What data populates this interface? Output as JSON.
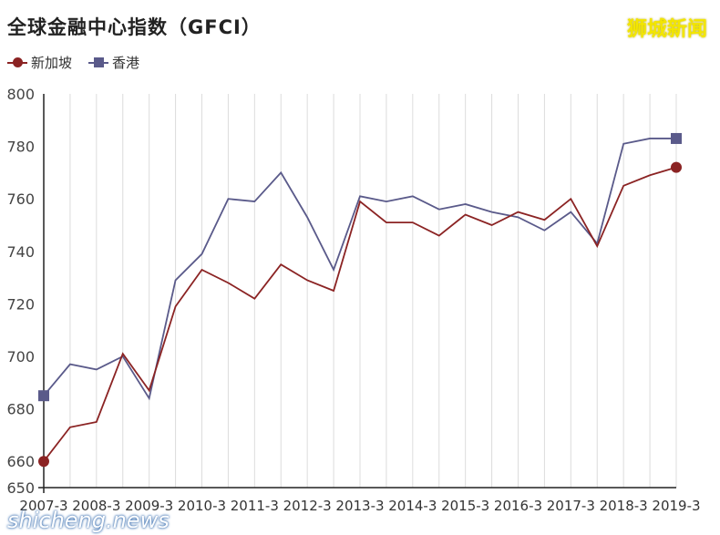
{
  "header": {
    "title": "全球金融中心指数（GFCI）",
    "brand": "狮城新闻"
  },
  "footer": {
    "watermark": "shicheng.news"
  },
  "colors": {
    "singapore": "#8b2323",
    "hongkong": "#5a5a8a",
    "grid": "#dcdcdc",
    "axis": "#222222"
  },
  "chart_data": {
    "type": "line",
    "title": "全球金融中心指数（GFCI）",
    "xlabel": "",
    "ylabel": "",
    "ylim": [
      650,
      800
    ],
    "yticks": [
      650,
      660,
      680,
      700,
      720,
      740,
      760,
      780,
      800
    ],
    "legend_position": "top-left",
    "grid": "vertical",
    "x": [
      "2007-3",
      "2007-9",
      "2008-3",
      "2008-9",
      "2009-3",
      "2009-9",
      "2010-3",
      "2010-9",
      "2011-3",
      "2011-9",
      "2012-3",
      "2012-9",
      "2013-3",
      "2013-9",
      "2014-3",
      "2014-9",
      "2015-3",
      "2015-9",
      "2016-3",
      "2016-9",
      "2017-3",
      "2017-9",
      "2018-3",
      "2018-9",
      "2019-3"
    ],
    "xtick_labels": [
      "2007-3",
      "2008-3",
      "2009-3",
      "2010-3",
      "2011-3",
      "2012-3",
      "2013-3",
      "2014-3",
      "2015-3",
      "2016-3",
      "2017-3",
      "2018-3",
      "2019-3"
    ],
    "series": [
      {
        "name": "新加坡",
        "marker": "circle",
        "color": "#8b2323",
        "values": [
          660,
          673,
          675,
          701,
          687,
          719,
          733,
          728,
          722,
          735,
          729,
          725,
          759,
          751,
          751,
          746,
          754,
          750,
          755,
          752,
          760,
          742,
          765,
          769,
          772
        ]
      },
      {
        "name": "香港",
        "marker": "square",
        "color": "#5a5a8a",
        "values": [
          685,
          697,
          695,
          700,
          684,
          729,
          739,
          760,
          759,
          770,
          753,
          733,
          761,
          759,
          761,
          756,
          758,
          755,
          753,
          748,
          755,
          743,
          781,
          783,
          783
        ]
      }
    ]
  }
}
